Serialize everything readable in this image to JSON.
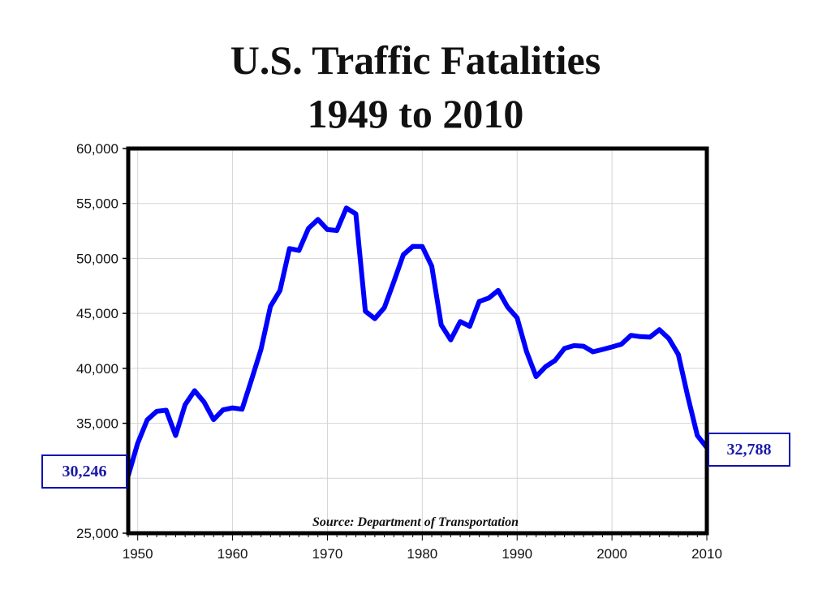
{
  "chart_data": {
    "type": "line",
    "title": "U.S. Traffic Fatalities",
    "subtitle": "1949 to 2010",
    "xlabel": "",
    "ylabel": "",
    "xlim": [
      1949,
      2010
    ],
    "ylim": [
      25000,
      60000
    ],
    "x_ticks": [
      "1950",
      "1960",
      "1970",
      "1980",
      "1990",
      "2000",
      "2010"
    ],
    "y_ticks": [
      "25,000",
      "30,000",
      "35,000",
      "40,000",
      "45,000",
      "50,000",
      "55,000",
      "60,000"
    ],
    "grid": true,
    "source": "Source: Department of Transportation",
    "start_label": "30,246",
    "end_label": "32,788",
    "line_color": "#0000ff",
    "series": [
      {
        "x": [
          1949,
          1950,
          1951,
          1952,
          1953,
          1954,
          1955,
          1956,
          1957,
          1958,
          1959,
          1960,
          1961,
          1962,
          1963,
          1964,
          1965,
          1966,
          1967,
          1968,
          1969,
          1970,
          1971,
          1972,
          1973,
          1974,
          1975,
          1976,
          1977,
          1978,
          1979,
          1980,
          1981,
          1982,
          1983,
          1984,
          1985,
          1986,
          1987,
          1988,
          1989,
          1990,
          1991,
          1992,
          1993,
          1994,
          1995,
          1996,
          1997,
          1998,
          1999,
          2000,
          2001,
          2002,
          2003,
          2004,
          2005,
          2006,
          2007,
          2008,
          2009,
          2010
        ],
        "values": [
          30246,
          33186,
          35309,
          36088,
          36190,
          33890,
          36688,
          37965,
          36932,
          35331,
          36223,
          36399,
          36285,
          38980,
          41723,
          45645,
          47089,
          50894,
          50724,
          52725,
          53543,
          52627,
          52542,
          54589,
          54052,
          45196,
          44525,
          45523,
          47878,
          50331,
          51093,
          51091,
          49301,
          43945,
          42589,
          44257,
          43825,
          46087,
          46390,
          47087,
          45582,
          44599,
          41508,
          39250,
          40150,
          40716,
          41817,
          42065,
          42013,
          41501,
          41717,
          41945,
          42196,
          43005,
          42884,
          42836,
          43510,
          42708,
          41259,
          37423,
          33883,
          32788
        ]
      }
    ]
  }
}
